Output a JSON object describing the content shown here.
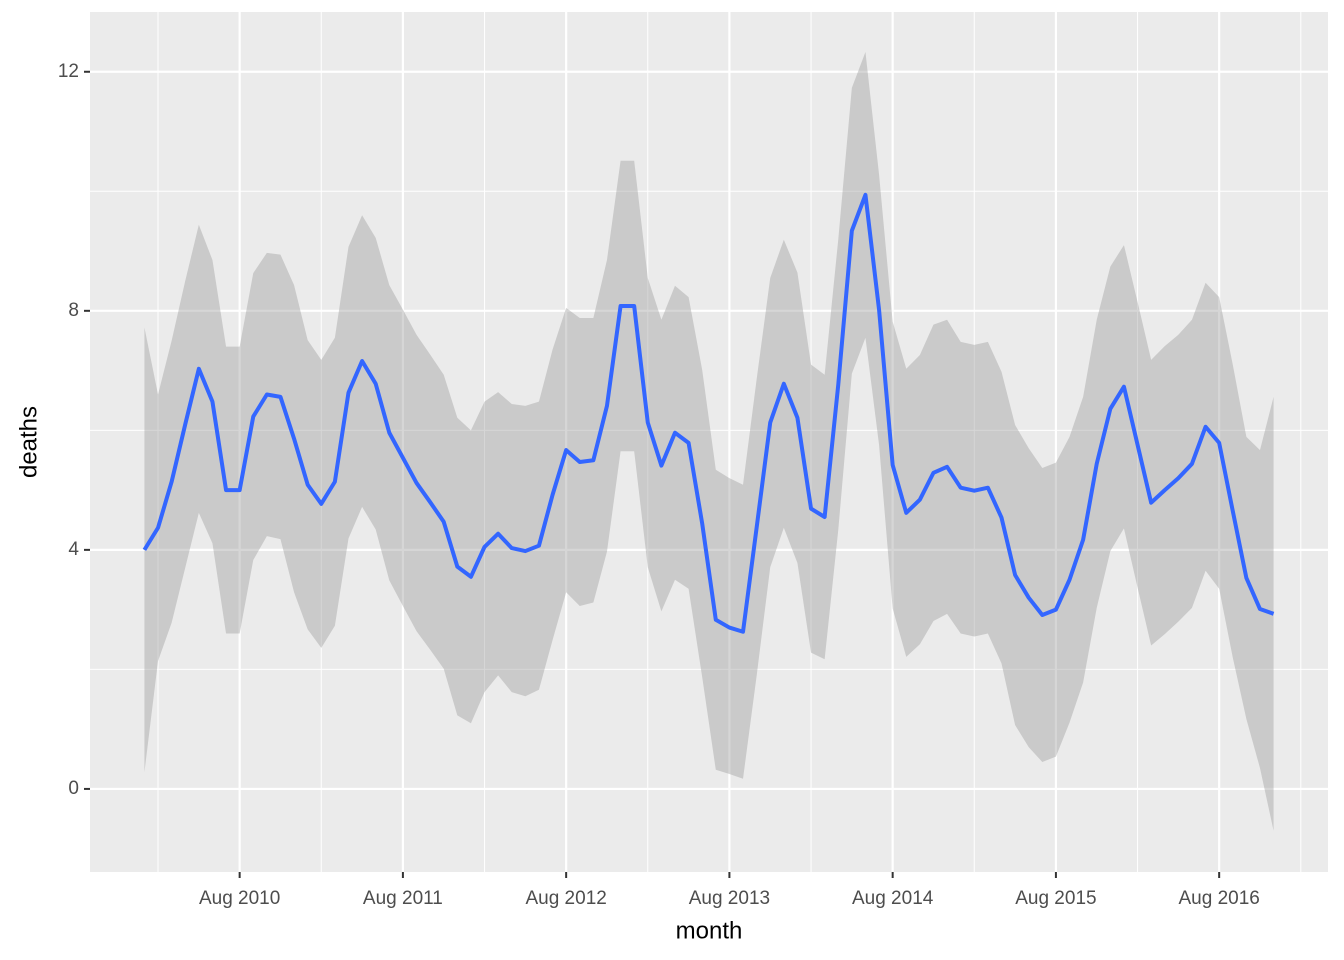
{
  "chart_data": {
    "type": "line",
    "x_label": "month",
    "y_label": "deaths",
    "x": [
      "2010-01",
      "2010-02",
      "2010-03",
      "2010-04",
      "2010-05",
      "2010-06",
      "2010-07",
      "2010-08",
      "2010-09",
      "2010-10",
      "2010-11",
      "2010-12",
      "2011-01",
      "2011-02",
      "2011-03",
      "2011-04",
      "2011-05",
      "2011-06",
      "2011-07",
      "2011-08",
      "2011-09",
      "2011-10",
      "2011-11",
      "2011-12",
      "2012-01",
      "2012-02",
      "2012-03",
      "2012-04",
      "2012-05",
      "2012-06",
      "2012-07",
      "2012-08",
      "2012-09",
      "2012-10",
      "2012-11",
      "2012-12",
      "2013-01",
      "2013-02",
      "2013-03",
      "2013-04",
      "2013-05",
      "2013-06",
      "2013-07",
      "2013-08",
      "2013-09",
      "2013-10",
      "2013-11",
      "2013-12",
      "2014-01",
      "2014-02",
      "2014-03",
      "2014-04",
      "2014-05",
      "2014-06",
      "2014-07",
      "2014-08",
      "2014-09",
      "2014-10",
      "2014-11",
      "2014-12",
      "2015-01",
      "2015-02",
      "2015-03",
      "2015-04",
      "2015-05",
      "2015-06",
      "2015-07",
      "2015-08",
      "2015-09",
      "2015-10",
      "2015-11",
      "2015-12",
      "2016-01",
      "2016-02",
      "2016-03",
      "2016-04",
      "2016-05",
      "2016-06",
      "2016-07",
      "2016-08",
      "2016-09",
      "2016-10",
      "2016-11",
      "2016-12"
    ],
    "values": [
      4.0,
      4.37,
      5.14,
      6.1,
      7.03,
      6.48,
      5.0,
      5.0,
      6.23,
      6.6,
      6.56,
      5.86,
      5.09,
      4.77,
      5.14,
      6.63,
      7.16,
      6.78,
      5.96,
      5.54,
      5.12,
      4.8,
      4.47,
      3.72,
      3.55,
      4.05,
      4.27,
      4.03,
      3.98,
      4.07,
      4.92,
      5.67,
      5.47,
      5.5,
      6.41,
      8.08,
      8.08,
      6.13,
      5.41,
      5.96,
      5.79,
      4.44,
      2.83,
      2.7,
      2.63,
      4.37,
      6.13,
      6.78,
      6.21,
      4.69,
      4.55,
      6.76,
      9.34,
      9.94,
      8.02,
      5.42,
      4.62,
      4.84,
      5.29,
      5.39,
      5.04,
      4.99,
      5.04,
      4.54,
      3.58,
      3.2,
      2.91,
      3.0,
      3.5,
      4.17,
      5.44,
      6.36,
      6.73,
      5.76,
      4.79,
      5.0,
      5.2,
      5.44,
      6.06,
      5.79,
      4.65,
      3.53,
      3.01,
      2.93
    ],
    "upper": [
      7.72,
      6.6,
      7.5,
      8.5,
      9.44,
      8.85,
      7.4,
      7.4,
      8.63,
      8.97,
      8.94,
      8.43,
      7.51,
      7.18,
      7.55,
      9.07,
      9.6,
      9.22,
      8.43,
      8.02,
      7.6,
      7.27,
      6.93,
      6.21,
      6.0,
      6.48,
      6.64,
      6.44,
      6.41,
      6.48,
      7.35,
      8.05,
      7.88,
      7.88,
      8.85,
      10.51,
      10.51,
      8.55,
      7.85,
      8.42,
      8.23,
      7.01,
      5.34,
      5.2,
      5.09,
      6.85,
      8.55,
      9.19,
      8.64,
      7.1,
      6.93,
      9.19,
      11.73,
      12.33,
      10.28,
      7.82,
      7.03,
      7.26,
      7.77,
      7.85,
      7.48,
      7.43,
      7.48,
      6.98,
      6.09,
      5.7,
      5.37,
      5.46,
      5.89,
      6.56,
      7.85,
      8.74,
      9.1,
      8.15,
      7.18,
      7.41,
      7.6,
      7.85,
      8.47,
      8.23,
      7.1,
      5.89,
      5.67,
      6.56
    ],
    "lower": [
      0.28,
      2.14,
      2.78,
      3.7,
      4.62,
      4.11,
      2.6,
      2.6,
      3.83,
      4.23,
      4.18,
      3.29,
      2.67,
      2.36,
      2.73,
      4.19,
      4.72,
      4.34,
      3.49,
      3.06,
      2.64,
      2.33,
      2.01,
      1.23,
      1.1,
      1.62,
      1.9,
      1.62,
      1.55,
      1.66,
      2.49,
      3.29,
      3.06,
      3.12,
      3.97,
      5.65,
      5.65,
      3.71,
      2.97,
      3.5,
      3.35,
      1.87,
      0.32,
      0.25,
      0.17,
      1.89,
      3.71,
      4.37,
      3.78,
      2.28,
      2.17,
      4.33,
      6.95,
      7.55,
      5.76,
      3.02,
      2.21,
      2.42,
      2.81,
      2.93,
      2.6,
      2.55,
      2.6,
      2.1,
      1.07,
      0.7,
      0.45,
      0.54,
      1.11,
      1.78,
      3.03,
      3.98,
      4.36,
      3.37,
      2.4,
      2.59,
      2.8,
      3.03,
      3.65,
      3.35,
      2.2,
      1.17,
      0.35,
      -0.7
    ],
    "color": "#3366ff",
    "band_color": "#999999",
    "xlim": [
      "2009-09",
      "2017-04"
    ],
    "xticks": [
      {
        "value": "2010-08",
        "label": "Aug 2010"
      },
      {
        "value": "2011-08",
        "label": "Aug 2011"
      },
      {
        "value": "2012-08",
        "label": "Aug 2012"
      },
      {
        "value": "2013-08",
        "label": "Aug 2013"
      },
      {
        "value": "2014-08",
        "label": "Aug 2014"
      },
      {
        "value": "2015-08",
        "label": "Aug 2015"
      },
      {
        "value": "2016-08",
        "label": "Aug 2016"
      }
    ],
    "minor_xticks": [
      "2010-02",
      "2011-02",
      "2012-02",
      "2013-02",
      "2014-02",
      "2015-02",
      "2016-02",
      "2017-02"
    ],
    "ylim": [
      -1.39,
      13.0
    ],
    "yticks": [
      0,
      4,
      8,
      12
    ],
    "minor_yticks": [
      2,
      6,
      10
    ],
    "grid": true
  }
}
